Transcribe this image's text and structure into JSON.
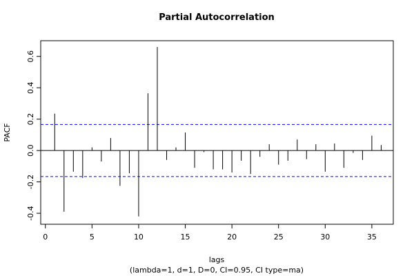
{
  "chart_data": {
    "type": "bar",
    "title": "Partial Autocorrelation",
    "xlabel": "lags",
    "subtitle": "(lambda=1, d=1, D=0, CI=0.95, CI type=ma)",
    "ylabel": "PACF",
    "x": [
      1,
      2,
      3,
      4,
      5,
      6,
      7,
      8,
      9,
      10,
      11,
      12,
      13,
      14,
      15,
      16,
      17,
      18,
      19,
      20,
      21,
      22,
      23,
      24,
      25,
      26,
      27,
      28,
      29,
      30,
      31,
      32,
      33,
      34,
      35,
      36
    ],
    "values": [
      0.235,
      -0.39,
      -0.135,
      -0.175,
      0.02,
      -0.07,
      0.08,
      -0.225,
      -0.145,
      -0.42,
      0.365,
      0.66,
      -0.06,
      0.02,
      0.115,
      -0.11,
      -0.01,
      -0.12,
      -0.12,
      -0.14,
      -0.065,
      -0.15,
      -0.04,
      0.04,
      -0.09,
      -0.065,
      0.07,
      -0.055,
      0.04,
      -0.135,
      0.045,
      -0.11,
      -0.015,
      -0.06,
      0.095,
      0.035
    ],
    "ci": 0.166,
    "xlim": [
      -0.5,
      37.3
    ],
    "ylim": [
      -0.47,
      0.7
    ],
    "xticks": [
      0,
      5,
      10,
      15,
      20,
      25,
      30,
      35
    ],
    "yticks": [
      -0.4,
      -0.2,
      0.0,
      0.2,
      0.4,
      0.6
    ],
    "ytick_labels": [
      "-0.4",
      "-0.2",
      "0.0",
      "0.2",
      "0.4",
      "0.6"
    ],
    "ci_line_color": "#0000ff",
    "bar_color": "#000000"
  }
}
